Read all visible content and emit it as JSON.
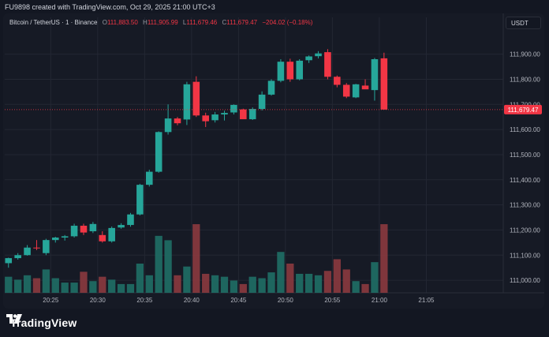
{
  "header": {
    "caption": "FU9898 created with TradingView.com, Oct 29, 2025 21:00 UTC+3"
  },
  "legend": {
    "symbol": "Bitcoin / TetherUS · 1 · Binance",
    "o_label": "O",
    "o_value": "111,883.50",
    "h_label": "H",
    "h_value": "111,905.99",
    "l_label": "L",
    "l_value": "111,679.46",
    "c_label": "C",
    "c_value": "111,679.47",
    "change": "−204.02 (−0.18%)"
  },
  "unit_button": "USDT",
  "footer": {
    "brand": "TradingView"
  },
  "colors": {
    "up": "#26a69a",
    "down": "#f23645",
    "background": "#161a25",
    "grid": "#232733"
  },
  "chart_data": {
    "type": "candlestick",
    "xlabel": "",
    "ylabel": "",
    "y_ticks": [
      "111,900.00",
      "111,800.00",
      "111,700.00",
      "111,600.00",
      "111,500.00",
      "111,400.00",
      "111,300.00",
      "111,200.00",
      "111,100.00",
      "111,000.00"
    ],
    "y_tick_values": [
      111900,
      111800,
      111700,
      111600,
      111500,
      111400,
      111300,
      111200,
      111100,
      111000
    ],
    "x_ticks": [
      "20:25",
      "20:30",
      "20:35",
      "20:40",
      "20:45",
      "20:50",
      "20:55",
      "21:00",
      "21:05"
    ],
    "x_tick_minutes": [
      25,
      30,
      35,
      40,
      45,
      50,
      55,
      60,
      65
    ],
    "ylim": [
      110950,
      111990
    ],
    "xlim": [
      20.1,
      73.2
    ],
    "last_price_label": "111,679.47",
    "last_price": 111679.47,
    "candles": [
      {
        "t": 20.5,
        "o": 111068,
        "h": 111090,
        "l": 111050,
        "c": 111088,
        "v": 0.55
      },
      {
        "t": 21.5,
        "o": 111088,
        "h": 111108,
        "l": 111082,
        "c": 111100,
        "v": 0.45
      },
      {
        "t": 22.5,
        "o": 111100,
        "h": 111140,
        "l": 111098,
        "c": 111130,
        "v": 0.6
      },
      {
        "t": 23.5,
        "o": 111130,
        "h": 111160,
        "l": 111120,
        "c": 111127,
        "v": 0.5
      },
      {
        "t": 24.5,
        "o": 111108,
        "h": 111165,
        "l": 111100,
        "c": 111160,
        "v": 0.8
      },
      {
        "t": 25.5,
        "o": 111160,
        "h": 111173,
        "l": 111150,
        "c": 111170,
        "v": 0.5
      },
      {
        "t": 26.5,
        "o": 111170,
        "h": 111180,
        "l": 111158,
        "c": 111175,
        "v": 0.35
      },
      {
        "t": 27.5,
        "o": 111175,
        "h": 111225,
        "l": 111170,
        "c": 111217,
        "v": 0.35
      },
      {
        "t": 28.5,
        "o": 111217,
        "h": 111225,
        "l": 111180,
        "c": 111190,
        "v": 0.72
      },
      {
        "t": 29.5,
        "o": 111195,
        "h": 111232,
        "l": 111188,
        "c": 111224,
        "v": 0.4
      },
      {
        "t": 30.5,
        "o": 111180,
        "h": 111195,
        "l": 111150,
        "c": 111155,
        "v": 0.55
      },
      {
        "t": 31.5,
        "o": 111155,
        "h": 111214,
        "l": 111150,
        "c": 111208,
        "v": 0.45
      },
      {
        "t": 32.5,
        "o": 111210,
        "h": 111227,
        "l": 111205,
        "c": 111220,
        "v": 0.3
      },
      {
        "t": 33.5,
        "o": 111220,
        "h": 111268,
        "l": 111213,
        "c": 111262,
        "v": 0.3
      },
      {
        "t": 34.5,
        "o": 111262,
        "h": 111384,
        "l": 111258,
        "c": 111380,
        "v": 1.0
      },
      {
        "t": 35.5,
        "o": 111380,
        "h": 111440,
        "l": 111373,
        "c": 111432,
        "v": 0.6
      },
      {
        "t": 36.5,
        "o": 111432,
        "h": 111593,
        "l": 111428,
        "c": 111590,
        "v": 1.95
      },
      {
        "t": 37.5,
        "o": 111590,
        "h": 111700,
        "l": 111580,
        "c": 111644,
        "v": 1.8
      },
      {
        "t": 38.5,
        "o": 111644,
        "h": 111650,
        "l": 111617,
        "c": 111625,
        "v": 0.6
      },
      {
        "t": 39.5,
        "o": 111640,
        "h": 111790,
        "l": 111618,
        "c": 111780,
        "v": 0.9
      },
      {
        "t": 40.5,
        "o": 111790,
        "h": 111812,
        "l": 111650,
        "c": 111656,
        "v": 2.35
      },
      {
        "t": 41.5,
        "o": 111656,
        "h": 111667,
        "l": 111610,
        "c": 111633,
        "v": 0.65
      },
      {
        "t": 42.5,
        "o": 111637,
        "h": 111670,
        "l": 111628,
        "c": 111660,
        "v": 0.6
      },
      {
        "t": 43.5,
        "o": 111660,
        "h": 111675,
        "l": 111636,
        "c": 111666,
        "v": 0.55
      },
      {
        "t": 44.5,
        "o": 111668,
        "h": 111700,
        "l": 111660,
        "c": 111698,
        "v": 0.42
      },
      {
        "t": 45.5,
        "o": 111680,
        "h": 111683,
        "l": 111644,
        "c": 111641,
        "v": 0.3
      },
      {
        "t": 46.5,
        "o": 111641,
        "h": 111688,
        "l": 111638,
        "c": 111682,
        "v": 0.55
      },
      {
        "t": 47.5,
        "o": 111682,
        "h": 111752,
        "l": 111676,
        "c": 111739,
        "v": 0.5
      },
      {
        "t": 48.5,
        "o": 111739,
        "h": 111800,
        "l": 111735,
        "c": 111794,
        "v": 0.7
      },
      {
        "t": 49.5,
        "o": 111794,
        "h": 111880,
        "l": 111788,
        "c": 111870,
        "v": 1.4
      },
      {
        "t": 50.5,
        "o": 111870,
        "h": 111882,
        "l": 111790,
        "c": 111800,
        "v": 1.0
      },
      {
        "t": 51.5,
        "o": 111800,
        "h": 111880,
        "l": 111796,
        "c": 111874,
        "v": 0.65
      },
      {
        "t": 52.5,
        "o": 111876,
        "h": 111895,
        "l": 111865,
        "c": 111891,
        "v": 0.65
      },
      {
        "t": 53.5,
        "o": 111892,
        "h": 111912,
        "l": 111883,
        "c": 111903,
        "v": 0.6
      },
      {
        "t": 54.5,
        "o": 111908,
        "h": 111920,
        "l": 111800,
        "c": 111810,
        "v": 0.75
      },
      {
        "t": 55.5,
        "o": 111810,
        "h": 111815,
        "l": 111768,
        "c": 111778,
        "v": 1.15
      },
      {
        "t": 56.5,
        "o": 111778,
        "h": 111785,
        "l": 111725,
        "c": 111731,
        "v": 0.8
      },
      {
        "t": 57.5,
        "o": 111728,
        "h": 111782,
        "l": 111725,
        "c": 111780,
        "v": 0.4
      },
      {
        "t": 58.5,
        "o": 111775,
        "h": 111800,
        "l": 111763,
        "c": 111760,
        "v": 0.3
      },
      {
        "t": 59.5,
        "o": 111757,
        "h": 111885,
        "l": 111715,
        "c": 111880,
        "v": 1.05
      },
      {
        "t": 60.5,
        "o": 111883.5,
        "h": 111905.99,
        "l": 111679.46,
        "c": 111679.47,
        "v": 2.35
      }
    ]
  }
}
